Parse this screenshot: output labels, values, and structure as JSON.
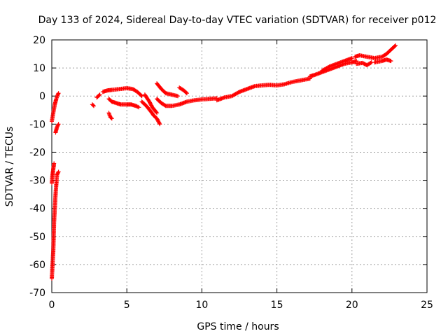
{
  "chart_data": {
    "type": "scatter",
    "title": "Day 133 of 2024, Sidereal Day-to-day VTEC variation (SDTVAR) for receiver p012",
    "xlabel": "GPS time / hours",
    "ylabel": "SDTVAR / TECUs",
    "xlim": [
      0,
      25
    ],
    "ylim": [
      -70,
      20
    ],
    "xticks": [
      0,
      5,
      10,
      15,
      20,
      25
    ],
    "yticks": [
      -70,
      -60,
      -50,
      -40,
      -30,
      -20,
      -10,
      0,
      10,
      20
    ],
    "grid": true,
    "legend": "none",
    "marker": "+",
    "series": [
      {
        "name": "SDTVAR",
        "color": "#ff0000",
        "segments": [
          [
            [
              0.0,
              -65
            ],
            [
              0.1,
              -55
            ],
            [
              0.15,
              -45
            ],
            [
              0.2,
              -40
            ],
            [
              0.25,
              -35
            ],
            [
              0.35,
              -28
            ],
            [
              0.45,
              -27
            ]
          ],
          [
            [
              0.0,
              -31
            ],
            [
              0.05,
              -28
            ],
            [
              0.1,
              -26
            ],
            [
              0.15,
              -24
            ]
          ],
          [
            [
              0.0,
              -9
            ],
            [
              0.1,
              -6
            ],
            [
              0.2,
              -3
            ],
            [
              0.3,
              -1
            ],
            [
              0.4,
              0.5
            ],
            [
              0.45,
              1
            ]
          ],
          [
            [
              0.25,
              -13
            ],
            [
              0.3,
              -12
            ],
            [
              0.35,
              -11
            ],
            [
              0.45,
              -10
            ]
          ],
          [
            [
              2.7,
              -3
            ],
            [
              2.8,
              -3.5
            ]
          ],
          [
            [
              3.0,
              -0.5
            ],
            [
              3.2,
              0.5
            ]
          ],
          [
            [
              3.4,
              1.5
            ],
            [
              3.7,
              2
            ],
            [
              4.0,
              2.2
            ],
            [
              4.5,
              2.5
            ],
            [
              5.0,
              2.8
            ],
            [
              5.4,
              2.5
            ],
            [
              5.7,
              1.5
            ],
            [
              6.0,
              0
            ]
          ],
          [
            [
              3.8,
              -6
            ],
            [
              3.9,
              -7.5
            ],
            [
              4.0,
              -8
            ]
          ],
          [
            [
              3.8,
              -1
            ],
            [
              4.0,
              -2
            ],
            [
              4.3,
              -2.5
            ],
            [
              4.6,
              -3
            ],
            [
              5.0,
              -3
            ],
            [
              5.3,
              -3
            ],
            [
              5.6,
              -3.5
            ],
            [
              5.8,
              -4
            ]
          ],
          [
            [
              6.0,
              -2
            ],
            [
              6.3,
              -3.5
            ],
            [
              6.6,
              -5.5
            ],
            [
              6.8,
              -7
            ],
            [
              7.0,
              -8
            ],
            [
              7.1,
              -9
            ],
            [
              7.2,
              -10
            ]
          ],
          [
            [
              6.2,
              0.5
            ],
            [
              6.5,
              -2
            ],
            [
              6.7,
              -4
            ],
            [
              7.0,
              -6
            ]
          ],
          [
            [
              7.0,
              -1
            ],
            [
              7.3,
              -2.5
            ],
            [
              7.6,
              -3.5
            ],
            [
              8.0,
              -3.5
            ],
            [
              8.5,
              -3
            ],
            [
              9.0,
              -2
            ],
            [
              9.5,
              -1.5
            ],
            [
              10.0,
              -1.2
            ],
            [
              10.5,
              -1.0
            ],
            [
              11.0,
              -0.8
            ]
          ],
          [
            [
              7.0,
              4.5
            ],
            [
              7.3,
              2.5
            ],
            [
              7.6,
              1
            ],
            [
              8.0,
              0.5
            ],
            [
              8.4,
              0
            ]
          ],
          [
            [
              8.5,
              3
            ],
            [
              8.8,
              2
            ],
            [
              9.0,
              1
            ]
          ],
          [
            [
              11.0,
              -1.5
            ],
            [
              11.5,
              -0.5
            ],
            [
              12.0,
              0
            ],
            [
              12.5,
              1.5
            ],
            [
              13.0,
              2.5
            ],
            [
              13.5,
              3.5
            ],
            [
              14.0,
              3.8
            ],
            [
              14.5,
              4
            ],
            [
              15.0,
              3.8
            ],
            [
              15.5,
              4.2
            ],
            [
              16.0,
              5
            ],
            [
              16.5,
              5.5
            ],
            [
              17.0,
              6
            ],
            [
              17.2,
              6.2
            ]
          ],
          [
            [
              17.2,
              7
            ],
            [
              17.5,
              7.5
            ],
            [
              18.0,
              8.5
            ],
            [
              18.5,
              9.5
            ],
            [
              19.0,
              10.5
            ],
            [
              19.5,
              11.5
            ],
            [
              20.0,
              12
            ],
            [
              20.3,
              12.5
            ]
          ],
          [
            [
              18.0,
              9
            ],
            [
              18.5,
              10.5
            ],
            [
              19.0,
              11.5
            ],
            [
              19.5,
              12.5
            ],
            [
              20.0,
              13.5
            ]
          ],
          [
            [
              20.2,
              14
            ],
            [
              20.5,
              14.5
            ],
            [
              21.0,
              14
            ],
            [
              21.5,
              13.5
            ],
            [
              22.0,
              14
            ],
            [
              22.3,
              15
            ]
          ],
          [
            [
              20.3,
              11.5
            ],
            [
              20.7,
              11.8
            ],
            [
              21.0,
              11
            ],
            [
              21.3,
              12
            ]
          ],
          [
            [
              21.5,
              12
            ],
            [
              22.0,
              12.5
            ],
            [
              22.3,
              13
            ],
            [
              22.6,
              12.5
            ]
          ],
          [
            [
              22.3,
              15
            ],
            [
              22.5,
              16
            ],
            [
              22.7,
              17
            ],
            [
              22.9,
              18
            ]
          ]
        ]
      }
    ]
  }
}
